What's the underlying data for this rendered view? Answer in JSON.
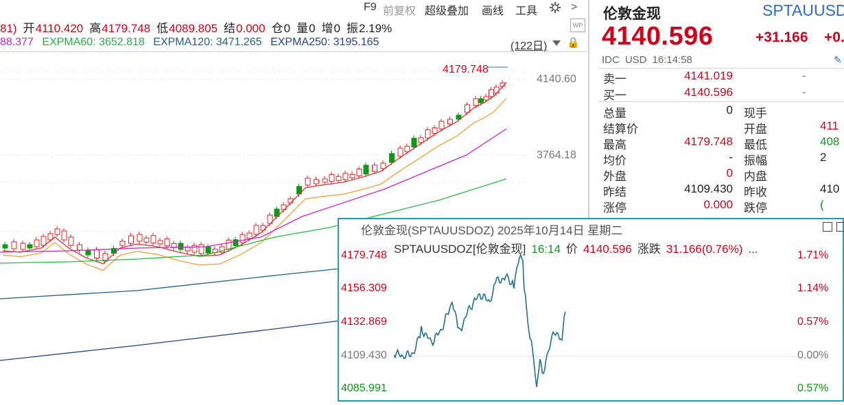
{
  "toolbar": {
    "items": [
      "F9",
      "前复权",
      "超级叠加",
      "画线",
      "工具"
    ],
    "settings_icon": "gear-icon",
    "next_icon": "chevron-right-icon"
  },
  "info": {
    "partial": "81)",
    "open_label": "开",
    "open": "4110.420",
    "high_label": "高",
    "high": "4179.748",
    "low_label": "低",
    "low": "4089.805",
    "settle_label": "结",
    "settle": "0.000",
    "pos_label": "仓",
    "pos": "0",
    "vol_label": "量",
    "vol": "0",
    "inc_label": "增",
    "inc": "0",
    "amp_label": "振",
    "amp": "2.19%"
  },
  "ma": {
    "partial": "88.377",
    "expma60": "EXPMA60: 3652.818",
    "expma120": "EXPMA120: 3471.265",
    "expma250": "EXPMA250: 3195.165",
    "period": "(122日)"
  },
  "main_chart": {
    "high_marker": "4179.748",
    "axis_labels": [
      "4140.60",
      "3764.18"
    ],
    "colors": {
      "up": "#e02020",
      "down": "#109618",
      "ma5": "#e03030",
      "ma10": "#f0a030",
      "ma20": "#d020d0",
      "ma60": "#20c040",
      "ma120": "#206080",
      "ma250": "#204090"
    }
  },
  "panel": {
    "title": "伦敦金现",
    "code": "SPTAUUSD",
    "price": "4140.596",
    "change": "+31.166",
    "change_pct": "+0.",
    "market": "IDC",
    "currency": "USD",
    "time": "16:14:58",
    "sell_label": "卖一",
    "sell": "4141.019",
    "sell_vol": "-",
    "buy_label": "买一",
    "buy": "4140.596",
    "buy_vol": "-",
    "stats": [
      {
        "l1": "总量",
        "v1": "0",
        "c1": "blk",
        "l2": "现手",
        "v2": ""
      },
      {
        "l1": "结算价",
        "v1": "",
        "c1": "blk",
        "l2": "开盘",
        "v2": "411",
        "c2": "red"
      },
      {
        "l1": "最高",
        "v1": "4179.748",
        "c1": "red",
        "l2": "最低",
        "v2": "408",
        "c2": "green"
      },
      {
        "l1": "均价",
        "v1": "-",
        "c1": "blk",
        "l2": "振幅",
        "v2": "2",
        "c2": "blk"
      },
      {
        "l1": "外盘",
        "v1": "0",
        "c1": "red",
        "l2": "内盘",
        "v2": "",
        "c2": "blk"
      },
      {
        "l1": "昨结",
        "v1": "4109.430",
        "c1": "blk",
        "l2": "昨收",
        "v2": "410",
        "c2": "blk"
      },
      {
        "l1": "涨停",
        "v1": "0.000",
        "c1": "red",
        "l2": "跌停",
        "v2": "(",
        "c2": "green"
      }
    ]
  },
  "popup": {
    "title": "伦敦金现(SPTAUUSDOZ) 2025年10月14日 星期二",
    "symbol": "SPTAUUSDOZ[伦敦金现]",
    "time": "16:14",
    "price_label": "价",
    "price": "4140.596",
    "change_label": "涨跌",
    "change": "31.166(0.76%)",
    "more": "...",
    "y_left": [
      "4179.748",
      "4156.309",
      "4132.869",
      "4109.430",
      "4085.991"
    ],
    "y_right": [
      "1.71%",
      "1.14%",
      "0.57%",
      "0.00%",
      "0.57%"
    ],
    "line_color": "#1f6f8f"
  }
}
